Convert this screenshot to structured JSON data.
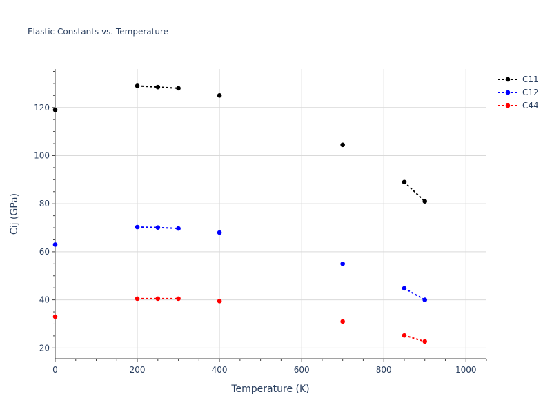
{
  "chart_data": {
    "type": "scatter",
    "title": "Elastic Constants vs. Temperature",
    "xlabel": "Temperature (K)",
    "ylabel": "Cij (GPa)",
    "xlim": [
      0,
      1050
    ],
    "ylim": [
      15.5,
      136
    ],
    "xticks": [
      0,
      200,
      400,
      600,
      800,
      1000
    ],
    "yticks": [
      20,
      40,
      60,
      80,
      100,
      120
    ],
    "grid": true,
    "legend": "top-right",
    "series": [
      {
        "name": "C11",
        "color": "#000000",
        "points": [
          [
            0,
            119
          ],
          [
            200,
            129
          ],
          [
            250,
            128.5
          ],
          [
            300,
            128
          ],
          [
            400,
            125
          ],
          [
            700,
            104.5
          ],
          [
            850,
            89
          ],
          [
            900,
            81
          ]
        ],
        "segments": [
          [
            1,
            2,
            3
          ],
          [
            6,
            7
          ]
        ]
      },
      {
        "name": "C12",
        "color": "#0000ff",
        "points": [
          [
            0,
            63
          ],
          [
            200,
            70.3
          ],
          [
            250,
            70.1
          ],
          [
            300,
            69.7
          ],
          [
            400,
            68
          ],
          [
            700,
            55
          ],
          [
            850,
            44.8
          ],
          [
            900,
            40
          ]
        ],
        "segments": [
          [
            1,
            2,
            3
          ],
          [
            6,
            7
          ]
        ]
      },
      {
        "name": "C44",
        "color": "#ff0000",
        "points": [
          [
            0,
            33
          ],
          [
            200,
            40.5
          ],
          [
            250,
            40.5
          ],
          [
            300,
            40.5
          ],
          [
            400,
            39.5
          ],
          [
            700,
            31
          ],
          [
            850,
            25.2
          ],
          [
            900,
            22.7
          ]
        ],
        "segments": [
          [
            1,
            2,
            3
          ],
          [
            6,
            7
          ]
        ]
      }
    ]
  }
}
